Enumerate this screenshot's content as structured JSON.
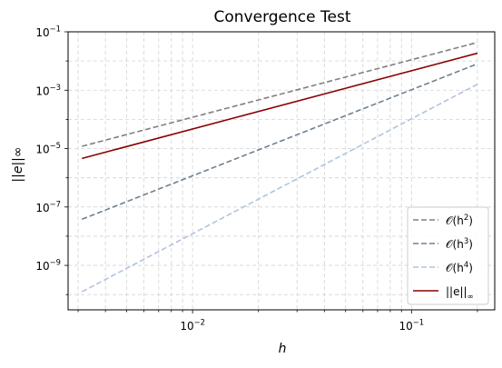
{
  "chart_data": {
    "type": "line",
    "title": "Convergence Test",
    "xlabel": "h",
    "ylabel": "||e||∞",
    "xscale": "log",
    "yscale": "log",
    "xlim": [
      0.0027,
      0.24
    ],
    "ylim": [
      3e-11,
      0.1
    ],
    "grid": true,
    "legend_position": "lower-right",
    "x_ticks": [
      {
        "value": 0.01,
        "base": "10",
        "exp": "−2"
      },
      {
        "value": 0.1,
        "base": "10",
        "exp": "−1"
      }
    ],
    "y_ticks": [
      {
        "value": 0.1,
        "base": "10",
        "exp": "−1"
      },
      {
        "value": 0.001,
        "base": "10",
        "exp": "−3"
      },
      {
        "value": 1e-05,
        "base": "10",
        "exp": "−5"
      },
      {
        "value": 1e-07,
        "base": "10",
        "exp": "−7"
      },
      {
        "value": 1e-09,
        "base": "10",
        "exp": "−9"
      }
    ],
    "series": [
      {
        "name": "𝒪(h²)",
        "label_main": "𝒪(h",
        "label_sup": "2",
        "label_end": ")",
        "color": "#808080",
        "dash": true,
        "x": [
          0.003125,
          0.2
        ],
        "y": [
          1.2e-05,
          0.0432
        ]
      },
      {
        "name": "𝒪(h³)",
        "label_main": "𝒪(h",
        "label_sup": "3",
        "label_end": ")",
        "color": "#708090",
        "dash": true,
        "x": [
          0.003125,
          0.2
        ],
        "y": [
          3.8e-08,
          0.008
        ]
      },
      {
        "name": "𝒪(h⁴)",
        "label_main": "𝒪(h",
        "label_sup": "4",
        "label_end": ")",
        "color": "#b0c4de",
        "dash": true,
        "x": [
          0.003125,
          0.2
        ],
        "y": [
          1.25e-10,
          0.0016
        ]
      },
      {
        "name": "||e||∞",
        "label_main": "||e||",
        "label_sub": "∞",
        "color": "#8b0000",
        "dash": false,
        "x": [
          0.003125,
          0.2
        ],
        "y": [
          4.6e-06,
          0.0185
        ]
      }
    ]
  }
}
